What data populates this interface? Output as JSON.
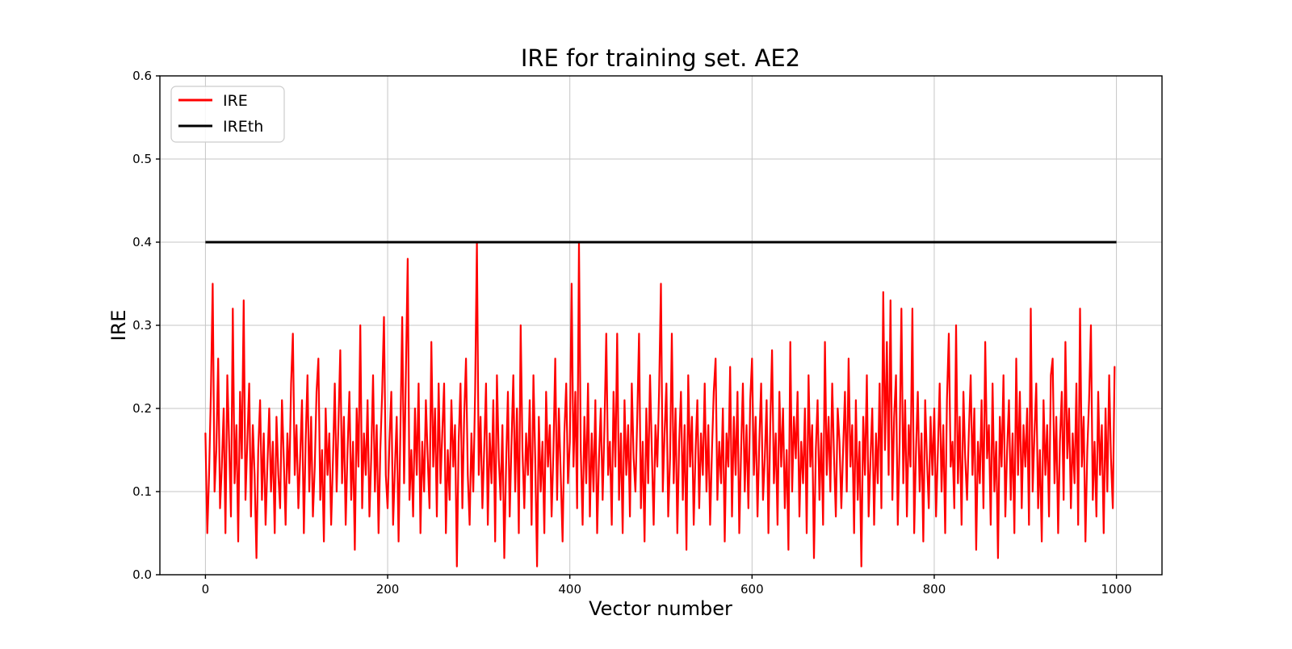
{
  "chart_data": {
    "type": "line",
    "title": "IRE for training set. AE2",
    "xlabel": "Vector number",
    "ylabel": "IRE",
    "xlim": [
      -50,
      1050
    ],
    "ylim": [
      0,
      0.6
    ],
    "xticks": [
      0,
      200,
      400,
      600,
      800,
      1000
    ],
    "yticks": [
      0.0,
      0.1,
      0.2,
      0.3,
      0.4,
      0.5,
      0.6
    ],
    "grid": true,
    "grid_color": "#c6c6c6",
    "spine_color": "#000000",
    "background_color": "#ffffff",
    "legend": {
      "position": "upper left",
      "entries": [
        {
          "label": "IRE",
          "color": "#ff0000"
        },
        {
          "label": "IREth",
          "color": "#000000"
        }
      ]
    },
    "series": [
      {
        "name": "IRE",
        "color": "#ff0000",
        "line_width": 2.2,
        "x_start": 0,
        "x_step": 2,
        "values": [
          0.17,
          0.05,
          0.12,
          0.22,
          0.35,
          0.1,
          0.15,
          0.26,
          0.08,
          0.13,
          0.2,
          0.05,
          0.24,
          0.16,
          0.07,
          0.32,
          0.11,
          0.18,
          0.04,
          0.22,
          0.14,
          0.33,
          0.09,
          0.16,
          0.23,
          0.07,
          0.18,
          0.12,
          0.02,
          0.15,
          0.21,
          0.09,
          0.17,
          0.06,
          0.13,
          0.2,
          0.1,
          0.16,
          0.05,
          0.19,
          0.12,
          0.08,
          0.21,
          0.14,
          0.06,
          0.17,
          0.11,
          0.23,
          0.29,
          0.12,
          0.18,
          0.08,
          0.14,
          0.21,
          0.05,
          0.16,
          0.24,
          0.1,
          0.19,
          0.07,
          0.13,
          0.22,
          0.26,
          0.09,
          0.15,
          0.04,
          0.2,
          0.12,
          0.17,
          0.06,
          0.14,
          0.23,
          0.1,
          0.18,
          0.27,
          0.11,
          0.19,
          0.06,
          0.15,
          0.22,
          0.09,
          0.16,
          0.03,
          0.2,
          0.13,
          0.3,
          0.08,
          0.17,
          0.12,
          0.21,
          0.07,
          0.14,
          0.24,
          0.1,
          0.18,
          0.05,
          0.15,
          0.22,
          0.31,
          0.12,
          0.08,
          0.16,
          0.22,
          0.06,
          0.13,
          0.19,
          0.04,
          0.17,
          0.31,
          0.11,
          0.24,
          0.38,
          0.09,
          0.15,
          0.07,
          0.2,
          0.12,
          0.23,
          0.05,
          0.16,
          0.1,
          0.21,
          0.14,
          0.08,
          0.28,
          0.13,
          0.2,
          0.07,
          0.23,
          0.11,
          0.17,
          0.23,
          0.05,
          0.15,
          0.09,
          0.21,
          0.13,
          0.18,
          0.01,
          0.16,
          0.23,
          0.08,
          0.19,
          0.26,
          0.12,
          0.06,
          0.17,
          0.1,
          0.22,
          0.4,
          0.12,
          0.19,
          0.08,
          0.15,
          0.23,
          0.06,
          0.17,
          0.11,
          0.21,
          0.04,
          0.24,
          0.14,
          0.09,
          0.18,
          0.02,
          0.13,
          0.22,
          0.07,
          0.16,
          0.24,
          0.1,
          0.2,
          0.05,
          0.3,
          0.15,
          0.08,
          0.17,
          0.12,
          0.21,
          0.06,
          0.24,
          0.14,
          0.01,
          0.19,
          0.1,
          0.16,
          0.05,
          0.22,
          0.13,
          0.18,
          0.07,
          0.15,
          0.26,
          0.09,
          0.2,
          0.12,
          0.04,
          0.17,
          0.23,
          0.11,
          0.16,
          0.35,
          0.13,
          0.22,
          0.08,
          0.4,
          0.15,
          0.06,
          0.19,
          0.11,
          0.23,
          0.07,
          0.17,
          0.1,
          0.21,
          0.05,
          0.14,
          0.2,
          0.09,
          0.18,
          0.29,
          0.12,
          0.16,
          0.06,
          0.22,
          0.13,
          0.29,
          0.09,
          0.17,
          0.05,
          0.21,
          0.12,
          0.18,
          0.07,
          0.23,
          0.14,
          0.1,
          0.19,
          0.29,
          0.08,
          0.16,
          0.04,
          0.2,
          0.11,
          0.24,
          0.15,
          0.06,
          0.18,
          0.13,
          0.22,
          0.35,
          0.1,
          0.17,
          0.23,
          0.07,
          0.14,
          0.29,
          0.11,
          0.2,
          0.05,
          0.16,
          0.22,
          0.09,
          0.18,
          0.03,
          0.24,
          0.13,
          0.19,
          0.06,
          0.15,
          0.21,
          0.08,
          0.17,
          0.12,
          0.23,
          0.1,
          0.18,
          0.06,
          0.15,
          0.22,
          0.26,
          0.09,
          0.16,
          0.11,
          0.2,
          0.04,
          0.17,
          0.13,
          0.25,
          0.07,
          0.19,
          0.12,
          0.22,
          0.05,
          0.15,
          0.23,
          0.1,
          0.18,
          0.08,
          0.21,
          0.26,
          0.12,
          0.19,
          0.07,
          0.16,
          0.23,
          0.09,
          0.14,
          0.21,
          0.05,
          0.18,
          0.27,
          0.11,
          0.17,
          0.06,
          0.22,
          0.13,
          0.2,
          0.08,
          0.15,
          0.03,
          0.28,
          0.1,
          0.19,
          0.14,
          0.22,
          0.07,
          0.16,
          0.11,
          0.2,
          0.05,
          0.24,
          0.13,
          0.18,
          0.02,
          0.15,
          0.21,
          0.09,
          0.17,
          0.06,
          0.28,
          0.12,
          0.19,
          0.1,
          0.23,
          0.14,
          0.07,
          0.2,
          0.16,
          0.08,
          0.15,
          0.22,
          0.1,
          0.26,
          0.13,
          0.18,
          0.05,
          0.21,
          0.09,
          0.16,
          0.01,
          0.19,
          0.12,
          0.24,
          0.07,
          0.14,
          0.2,
          0.06,
          0.17,
          0.11,
          0.23,
          0.08,
          0.34,
          0.15,
          0.28,
          0.12,
          0.33,
          0.09,
          0.19,
          0.24,
          0.06,
          0.16,
          0.32,
          0.11,
          0.21,
          0.07,
          0.18,
          0.13,
          0.32,
          0.05,
          0.15,
          0.22,
          0.1,
          0.17,
          0.04,
          0.21,
          0.14,
          0.08,
          0.19,
          0.12,
          0.2,
          0.07,
          0.15,
          0.23,
          0.1,
          0.18,
          0.05,
          0.21,
          0.29,
          0.13,
          0.16,
          0.08,
          0.3,
          0.11,
          0.19,
          0.06,
          0.22,
          0.14,
          0.09,
          0.17,
          0.24,
          0.12,
          0.2,
          0.03,
          0.16,
          0.11,
          0.21,
          0.08,
          0.28,
          0.14,
          0.18,
          0.06,
          0.23,
          0.1,
          0.16,
          0.02,
          0.19,
          0.13,
          0.24,
          0.07,
          0.15,
          0.21,
          0.09,
          0.17,
          0.05,
          0.26,
          0.12,
          0.22,
          0.08,
          0.18,
          0.13,
          0.2,
          0.06,
          0.32,
          0.1,
          0.17,
          0.23,
          0.08,
          0.15,
          0.04,
          0.21,
          0.12,
          0.18,
          0.07,
          0.24,
          0.26,
          0.11,
          0.19,
          0.05,
          0.16,
          0.22,
          0.09,
          0.28,
          0.14,
          0.2,
          0.08,
          0.17,
          0.11,
          0.23,
          0.06,
          0.32,
          0.13,
          0.19,
          0.04,
          0.15,
          0.21,
          0.3,
          0.09,
          0.16,
          0.07,
          0.22,
          0.12,
          0.18,
          0.05,
          0.2,
          0.1,
          0.24,
          0.14,
          0.08,
          0.25
        ]
      },
      {
        "name": "IREth",
        "color": "#000000",
        "line_width": 3,
        "type": "hline",
        "y": 0.4,
        "x_range": [
          0,
          1000
        ]
      }
    ]
  }
}
